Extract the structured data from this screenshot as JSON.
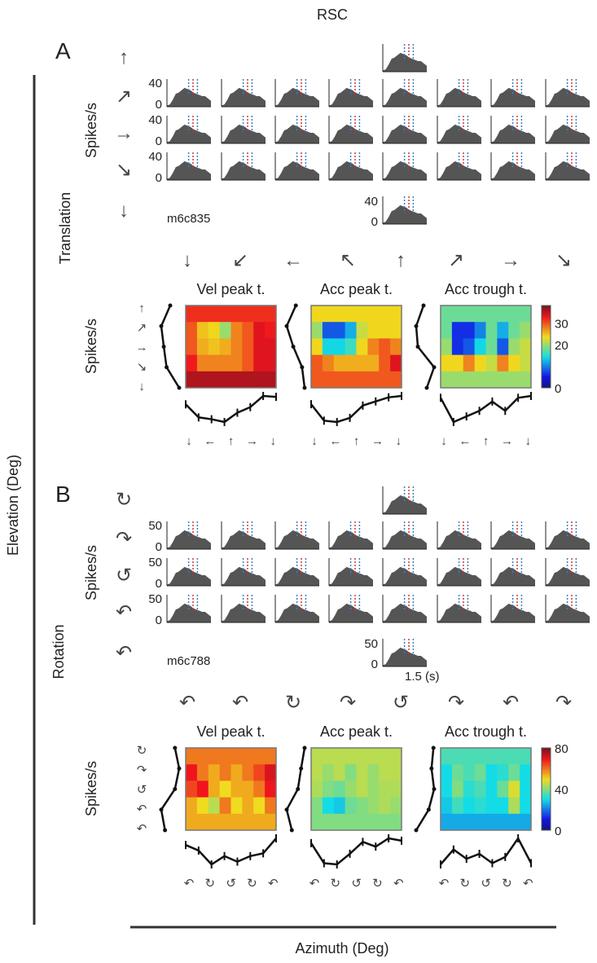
{
  "header": {
    "region": "RSC"
  },
  "panels": {
    "A": {
      "letter": "A",
      "condition": "Translation",
      "cell_id": "m6c835",
      "psth_ymax": "40",
      "psth_ymin": "0",
      "elev_arrows": [
        "↑",
        "↗",
        "→",
        "↘",
        "↓"
      ],
      "az_arrows": [
        "↓",
        "↙",
        "←",
        "↖",
        "↑",
        "↗",
        "→",
        "↘"
      ],
      "small_elev_arrows": [
        "↑",
        "↗",
        "→",
        "↘",
        "↓"
      ],
      "small_az_arrows": [
        "↓",
        "←",
        "↑",
        "→",
        "↓"
      ],
      "colorbar_ticks": [
        "30",
        "20",
        "0"
      ]
    },
    "B": {
      "letter": "B",
      "condition": "Rotation",
      "cell_id": "m6c788",
      "psth_ymax": "50",
      "psth_ymin": "0",
      "time_label": "1.5 (s)",
      "elev_arrows": [
        "↻",
        "↷",
        "↺",
        "↶",
        "↶"
      ],
      "az_arrows": [
        "↶",
        "↶",
        "↻",
        "↷",
        "↺",
        "↷",
        "↶",
        "↷"
      ],
      "small_elev_arrows": [
        "↻",
        "↷",
        "↺",
        "↶",
        "↶"
      ],
      "small_az_arrows": [
        "↶",
        "↻",
        "↺",
        "↻",
        "↶"
      ],
      "colorbar_ticks": [
        "80",
        "40",
        "0"
      ]
    }
  },
  "axes": {
    "elevation": "Elevation (Deg)",
    "azimuth": "Azimuth (Deg)",
    "spikes": "Spikes/s"
  },
  "map_titles": [
    "Vel peak t.",
    "Acc peak t.",
    "Acc trough t."
  ],
  "chart_data": [
    {
      "type": "heatmap",
      "panel": "A",
      "title": "Vel peak t.",
      "zlim": [
        0,
        38
      ],
      "rows": "elevation 90..-90",
      "cols": "azimuth 8 directions",
      "values": [
        [
          32,
          32,
          32,
          32,
          32,
          32,
          32,
          32
        ],
        [
          30,
          25,
          24,
          20,
          28,
          30,
          34,
          33
        ],
        [
          30,
          26,
          25,
          26,
          28,
          30,
          34,
          34
        ],
        [
          33,
          28,
          28,
          28,
          28,
          30,
          34,
          34
        ],
        [
          36,
          36,
          36,
          36,
          36,
          36,
          36,
          36
        ]
      ]
    },
    {
      "type": "heatmap",
      "panel": "A",
      "title": "Acc peak t.",
      "zlim": [
        0,
        38
      ],
      "values": [
        [
          24,
          24,
          24,
          24,
          24,
          24,
          24,
          24
        ],
        [
          20,
          8,
          8,
          12,
          22,
          24,
          24,
          24
        ],
        [
          24,
          14,
          14,
          16,
          24,
          28,
          30,
          28
        ],
        [
          30,
          28,
          26,
          26,
          26,
          26,
          30,
          34
        ],
        [
          30,
          30,
          30,
          30,
          30,
          30,
          30,
          30
        ]
      ]
    },
    {
      "type": "heatmap",
      "panel": "A",
      "title": "Acc trough t.",
      "zlim": [
        0,
        38
      ],
      "values": [
        [
          18,
          18,
          18,
          18,
          18,
          18,
          18,
          18
        ],
        [
          18,
          6,
          6,
          10,
          18,
          12,
          18,
          20
        ],
        [
          20,
          6,
          8,
          14,
          18,
          8,
          20,
          22
        ],
        [
          24,
          24,
          28,
          24,
          22,
          28,
          24,
          22
        ],
        [
          20,
          20,
          20,
          20,
          20,
          20,
          20,
          20
        ]
      ]
    },
    {
      "type": "heatmap",
      "panel": "B",
      "title": "Vel peak t.",
      "zlim": [
        0,
        80
      ],
      "values": [
        [
          60,
          60,
          60,
          60,
          60,
          60,
          60,
          60
        ],
        [
          70,
          60,
          55,
          60,
          55,
          60,
          65,
          72
        ],
        [
          65,
          70,
          55,
          50,
          55,
          55,
          60,
          70
        ],
        [
          55,
          50,
          45,
          60,
          50,
          55,
          50,
          60
        ],
        [
          55,
          55,
          55,
          55,
          55,
          55,
          55,
          55
        ]
      ]
    },
    {
      "type": "heatmap",
      "panel": "B",
      "title": "Acc peak t.",
      "zlim": [
        0,
        80
      ],
      "values": [
        [
          45,
          45,
          45,
          45,
          45,
          45,
          45,
          45
        ],
        [
          45,
          42,
          45,
          40,
          45,
          42,
          45,
          45
        ],
        [
          44,
          40,
          38,
          42,
          45,
          42,
          44,
          44
        ],
        [
          40,
          30,
          28,
          38,
          40,
          42,
          44,
          42
        ],
        [
          40,
          40,
          40,
          40,
          40,
          40,
          40,
          40
        ]
      ]
    },
    {
      "type": "heatmap",
      "panel": "B",
      "title": "Acc trough t.",
      "zlim": [
        0,
        80
      ],
      "values": [
        [
          35,
          35,
          35,
          35,
          35,
          35,
          35,
          35
        ],
        [
          30,
          38,
          35,
          38,
          30,
          32,
          38,
          30
        ],
        [
          30,
          40,
          32,
          35,
          30,
          38,
          48,
          30
        ],
        [
          28,
          34,
          30,
          32,
          30,
          30,
          44,
          30
        ],
        [
          25,
          25,
          25,
          25,
          25,
          25,
          25,
          25
        ]
      ]
    },
    {
      "type": "area",
      "name": "PSTH profile (normalized)",
      "x_range_s": [
        0,
        1.5
      ],
      "values": [
        0.05,
        0.1,
        0.3,
        0.55,
        0.6,
        0.7,
        0.8,
        0.75,
        0.7,
        0.6,
        0.55,
        0.5,
        0.45,
        0.45,
        0.35,
        0.25
      ]
    }
  ]
}
